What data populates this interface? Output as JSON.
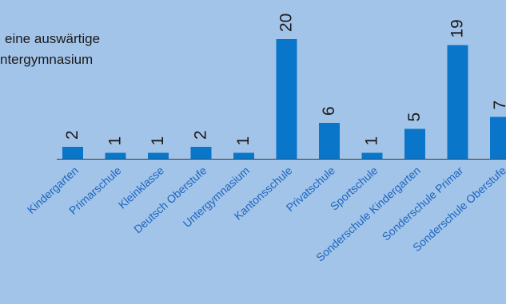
{
  "chart_data": {
    "type": "bar",
    "title_lines": [
      "eine auswärtige",
      "ntergymnasium"
    ],
    "categories": [
      "Kindergarten",
      "Primarschule",
      "Kleinklasse",
      "Deutsch Oberstufe",
      "Untergymnasium",
      "Kantonsschule",
      "Privatschule",
      "Sportschule",
      "Sonderschule Kindergarten",
      "Sonderschule Primar",
      "Sonderschule Oberstufe"
    ],
    "values": [
      2,
      1,
      1,
      2,
      1,
      20,
      6,
      1,
      5,
      19,
      7
    ],
    "data_labels": true,
    "bar_color": "#0a76c9",
    "text_color": "#1a1a1a",
    "label_color": "#1a66c0",
    "background": "#a3c4e9"
  }
}
